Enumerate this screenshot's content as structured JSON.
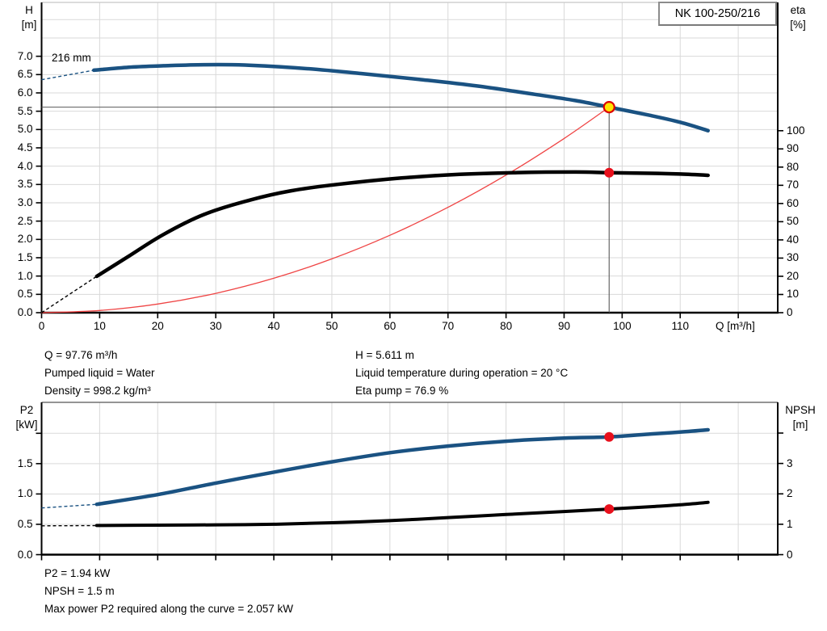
{
  "pump_name": "NK 100-250/216",
  "curve_label": "216 mm",
  "labels": {
    "h": "H",
    "h_unit": "[m]",
    "eta": "eta",
    "eta_unit": "[%]",
    "q": "Q [m³/h]",
    "p2": "P2",
    "p2_unit": "[kW]",
    "npsh": "NPSH",
    "npsh_unit": "[m]"
  },
  "info_top": {
    "left": [
      "Q = 97.76 m³/h",
      "Pumped liquid = Water",
      "Density = 998.2 kg/m³"
    ],
    "right": [
      "H = 5.611 m",
      "Liquid temperature during operation = 20 °C",
      "Eta pump = 76.9 %"
    ]
  },
  "info_bottom": [
    "P2 = 1.94 kW",
    "NPSH = 1.5 m",
    "Max power P2 required along the curve = 2.057 kW"
  ],
  "colors": {
    "curve_blue": "#1a5282",
    "curve_black": "#000000",
    "system_red": "#ef4444",
    "dot_red": "#e8101c",
    "duty_yellow": "#ffe400",
    "duty_ring": "#dd0000",
    "grid": "#d9d9d9",
    "crosshair": "#5a5a5a",
    "axis": "#000000",
    "top_border": "#c8c8c8"
  },
  "chart_data": [
    {
      "type": "line",
      "name": "qh-eta-chart",
      "title": "NK 100-250/216",
      "xlabel": "Q [m³/h]",
      "ylabel_left": "H [m]",
      "ylabel_right": "eta [%]",
      "x": {
        "max": 126.8,
        "ticks": [
          [
            0,
            "0"
          ],
          [
            10,
            "10"
          ],
          [
            20,
            "20"
          ],
          [
            30,
            "30"
          ],
          [
            40,
            "40"
          ],
          [
            50,
            "50"
          ],
          [
            60,
            "60"
          ],
          [
            70,
            "70"
          ],
          [
            80,
            "80"
          ],
          [
            90,
            "90"
          ],
          [
            100,
            "100"
          ],
          [
            110,
            "110"
          ],
          [
            120,
            ""
          ]
        ]
      },
      "left": {
        "max": 8.47,
        "ticks": [
          [
            0,
            "0.0"
          ],
          [
            0.5,
            "0.5"
          ],
          [
            1,
            "1.0"
          ],
          [
            1.5,
            "1.5"
          ],
          [
            2,
            "2.0"
          ],
          [
            2.5,
            "2.5"
          ],
          [
            3,
            "3.0"
          ],
          [
            3.5,
            "3.5"
          ],
          [
            4,
            "4.0"
          ],
          [
            4.5,
            "4.5"
          ],
          [
            5,
            "5.0"
          ],
          [
            5.5,
            "5.5"
          ],
          [
            6,
            "6.0"
          ],
          [
            6.5,
            "6.5"
          ],
          [
            7,
            "7.0"
          ]
        ]
      },
      "right": {
        "max": 170.5,
        "ticks": [
          [
            0,
            "0"
          ],
          [
            10,
            "10"
          ],
          [
            20,
            "20"
          ],
          [
            30,
            "30"
          ],
          [
            40,
            "40"
          ],
          [
            50,
            "50"
          ],
          [
            60,
            "60"
          ],
          [
            70,
            "70"
          ],
          [
            80,
            "80"
          ],
          [
            90,
            "90"
          ],
          [
            100,
            "100"
          ]
        ]
      },
      "grid_left": [
        0.5,
        1,
        1.5,
        2,
        2.5,
        3,
        3.5,
        4,
        4.5,
        5,
        5.5,
        6,
        6.5,
        7,
        7.5,
        8
      ],
      "series": [
        {
          "name": "system-curve",
          "axis": "left",
          "color_key": "system_red",
          "width": 1.3,
          "solid": [
            [
              0,
              0
            ],
            [
              10,
              0.059
            ],
            [
              20,
              0.235
            ],
            [
              30,
              0.528
            ],
            [
              40,
              0.939
            ],
            [
              50,
              1.468
            ],
            [
              60,
              2.113
            ],
            [
              70,
              2.876
            ],
            [
              80,
              3.757
            ],
            [
              90,
              4.755
            ],
            [
              97.76,
              5.611
            ]
          ]
        },
        {
          "name": "head-curve-216mm",
          "axis": "left",
          "color_key": "curve_blue",
          "width": 4.5,
          "dash": [
            [
              0,
              6.36
            ],
            [
              9,
              6.62
            ]
          ],
          "solid": [
            [
              9,
              6.62
            ],
            [
              15,
              6.7
            ],
            [
              21,
              6.74
            ],
            [
              28,
              6.77
            ],
            [
              35,
              6.76
            ],
            [
              45,
              6.67
            ],
            [
              55,
              6.53
            ],
            [
              65,
              6.37
            ],
            [
              75,
              6.19
            ],
            [
              85,
              5.96
            ],
            [
              92,
              5.79
            ],
            [
              97.76,
              5.611
            ],
            [
              105,
              5.38
            ],
            [
              110,
              5.2
            ],
            [
              114.8,
              4.97
            ]
          ]
        },
        {
          "name": "efficiency-curve",
          "axis": "right",
          "color_key": "curve_black",
          "width": 4.5,
          "dash": [
            [
              0,
              0
            ],
            [
              9.5,
              20
            ]
          ],
          "solid": [
            [
              9.5,
              20
            ],
            [
              15,
              31
            ],
            [
              21,
              43
            ],
            [
              28,
              54
            ],
            [
              36,
              62
            ],
            [
              43,
              67
            ],
            [
              51,
              70.5
            ],
            [
              62,
              74
            ],
            [
              72,
              76
            ],
            [
              82,
              77
            ],
            [
              92,
              77.3
            ],
            [
              97.76,
              76.9
            ],
            [
              105,
              76.6
            ],
            [
              110,
              76.2
            ],
            [
              114.8,
              75.5
            ]
          ]
        }
      ],
      "crosshair": {
        "q": 97.76,
        "v": 5.611
      },
      "markers": [
        {
          "name": "duty-point",
          "axis": "left",
          "q": 97.76,
          "v": 5.611,
          "r": 6.5,
          "fill_key": "duty_yellow",
          "stroke_key": "duty_ring",
          "stroke_width": 2.2
        },
        {
          "name": "efficiency-point",
          "axis": "right",
          "q": 97.76,
          "v": 76.9,
          "r": 5.5,
          "fill_key": "dot_red",
          "stroke_key": "dot_red",
          "stroke_width": 1
        }
      ]
    },
    {
      "type": "line",
      "name": "p2-npsh-chart",
      "xlabel": "Q [m³/h]",
      "ylabel_left": "P2 [kW]",
      "ylabel_right": "NPSH [m]",
      "x": {
        "max": 126.8,
        "ticks": [
          [
            0,
            ""
          ],
          [
            10,
            ""
          ],
          [
            20,
            ""
          ],
          [
            30,
            ""
          ],
          [
            40,
            ""
          ],
          [
            50,
            ""
          ],
          [
            60,
            ""
          ],
          [
            70,
            ""
          ],
          [
            80,
            ""
          ],
          [
            90,
            ""
          ],
          [
            100,
            ""
          ],
          [
            110,
            ""
          ],
          [
            120,
            ""
          ]
        ]
      },
      "left": {
        "max": 2.51,
        "ticks": [
          [
            0,
            "0.0"
          ],
          [
            0.5,
            "0.5"
          ],
          [
            1,
            "1.0"
          ],
          [
            1.5,
            "1.5"
          ],
          [
            2,
            ""
          ]
        ]
      },
      "right": {
        "max": 5.01,
        "ticks": [
          [
            0,
            "0"
          ],
          [
            1,
            "1"
          ],
          [
            2,
            "2"
          ],
          [
            3,
            "3"
          ],
          [
            4,
            ""
          ]
        ]
      },
      "grid_left": [
        0.5,
        1,
        1.5,
        2
      ],
      "series": [
        {
          "name": "p2-curve",
          "axis": "left",
          "color_key": "curve_blue",
          "width": 4.5,
          "dash": [
            [
              0,
              0.77
            ],
            [
              9.5,
              0.83
            ]
          ],
          "solid": [
            [
              9.5,
              0.83
            ],
            [
              20,
              0.99
            ],
            [
              30,
              1.18
            ],
            [
              40,
              1.36
            ],
            [
              50,
              1.53
            ],
            [
              60,
              1.68
            ],
            [
              70,
              1.79
            ],
            [
              80,
              1.87
            ],
            [
              90,
              1.92
            ],
            [
              97.76,
              1.94
            ],
            [
              105,
              1.99
            ],
            [
              110,
              2.02
            ],
            [
              114.8,
              2.057
            ]
          ]
        },
        {
          "name": "npsh-curve",
          "axis": "left",
          "color_key": "curve_black",
          "width": 4,
          "dash": [
            [
              0,
              0.475
            ],
            [
              9.5,
              0.48
            ]
          ],
          "solid_axis": "right",
          "solid": [
            [
              9.5,
              0.96
            ],
            [
              20,
              0.97
            ],
            [
              30,
              0.98
            ],
            [
              40,
              1.0
            ],
            [
              50,
              1.05
            ],
            [
              60,
              1.12
            ],
            [
              70,
              1.22
            ],
            [
              80,
              1.32
            ],
            [
              90,
              1.42
            ],
            [
              97.76,
              1.5
            ],
            [
              105,
              1.58
            ],
            [
              110,
              1.64
            ],
            [
              114.8,
              1.72
            ]
          ]
        }
      ],
      "markers": [
        {
          "name": "p2-point",
          "axis": "left",
          "q": 97.76,
          "v": 1.94,
          "r": 5.5,
          "fill_key": "dot_red",
          "stroke_key": "dot_red",
          "stroke_width": 1
        },
        {
          "name": "npsh-point",
          "axis": "right",
          "q": 97.76,
          "v": 1.5,
          "r": 5.5,
          "fill_key": "dot_red",
          "stroke_key": "dot_red",
          "stroke_width": 1
        }
      ]
    }
  ]
}
